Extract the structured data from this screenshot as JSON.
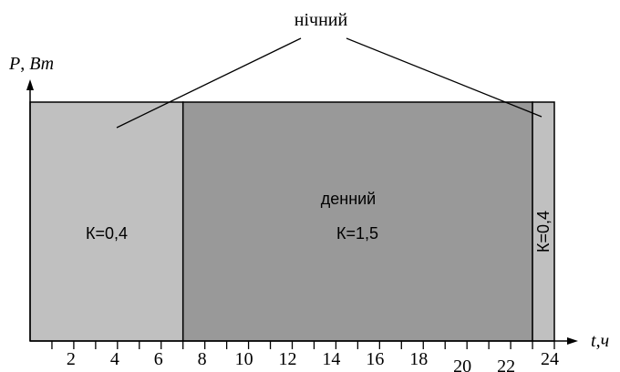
{
  "annotation": {
    "night_label": "нічний"
  },
  "axes": {
    "y_label_p": "P",
    "y_label_sep": ", ",
    "y_label_unit": "Вт",
    "x_label_t": "t",
    "x_label_sep": ",",
    "x_label_unit": "ч"
  },
  "periods": [
    {
      "from": 0,
      "to": 7,
      "k_label": "К=0,4",
      "color": "#c0c0c0"
    },
    {
      "from": 7,
      "to": 23,
      "name": "денний",
      "k_label": "К=1,5",
      "color": "#999999"
    },
    {
      "from": 23,
      "to": 24,
      "k_label": "К=0,4",
      "color": "#c0c0c0"
    }
  ],
  "x_ticks": [
    {
      "value": 2,
      "label": "2"
    },
    {
      "value": 4,
      "label": "4"
    },
    {
      "value": 6,
      "label": "6"
    },
    {
      "value": 8,
      "label": "8"
    },
    {
      "value": 10,
      "label": "10"
    },
    {
      "value": 12,
      "label": "12"
    },
    {
      "value": 14,
      "label": "14"
    },
    {
      "value": 16,
      "label": "16"
    },
    {
      "value": 18,
      "label": "18"
    },
    {
      "value": 20,
      "label": "20"
    },
    {
      "value": 22,
      "label": "22"
    },
    {
      "value": 24,
      "label": "24"
    }
  ]
}
